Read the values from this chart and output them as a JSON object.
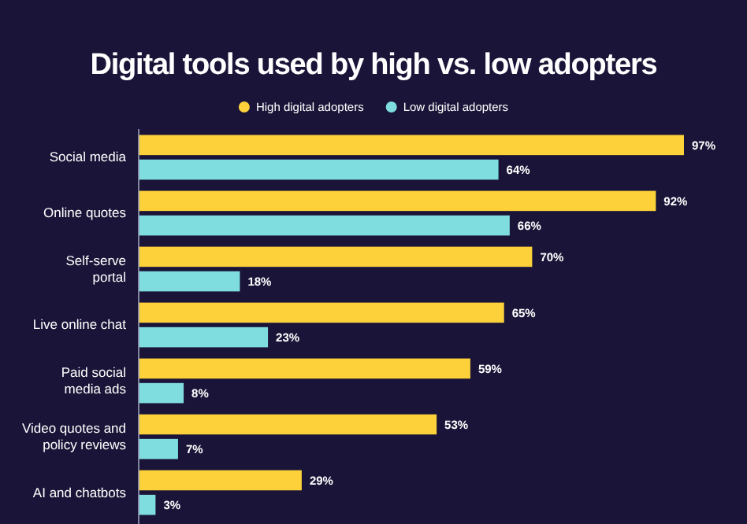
{
  "chart_data": {
    "type": "bar",
    "orientation": "horizontal",
    "title": "Digital tools used by high vs. low adopters",
    "categories": [
      "Social media",
      "Online quotes",
      "Self-serve portal",
      "Live online chat",
      "Paid social media ads",
      "Video quotes and policy reviews",
      "AI and chatbots"
    ],
    "series": [
      {
        "name": "High digital adopters",
        "color": "#fdd13a",
        "values": [
          97,
          92,
          70,
          65,
          59,
          53,
          29
        ],
        "value_labels": [
          "97%",
          "92%",
          "70%",
          "65%",
          "59%",
          "53%",
          "29%"
        ]
      },
      {
        "name": "Low digital adopters",
        "color": "#7fdde0",
        "values": [
          64,
          66,
          18,
          23,
          8,
          7,
          3
        ],
        "value_labels": [
          "64%",
          "66%",
          "18%",
          "23%",
          "8%",
          "7%",
          "3%"
        ]
      }
    ],
    "tick_labels": "y",
    "legend": "top"
  }
}
